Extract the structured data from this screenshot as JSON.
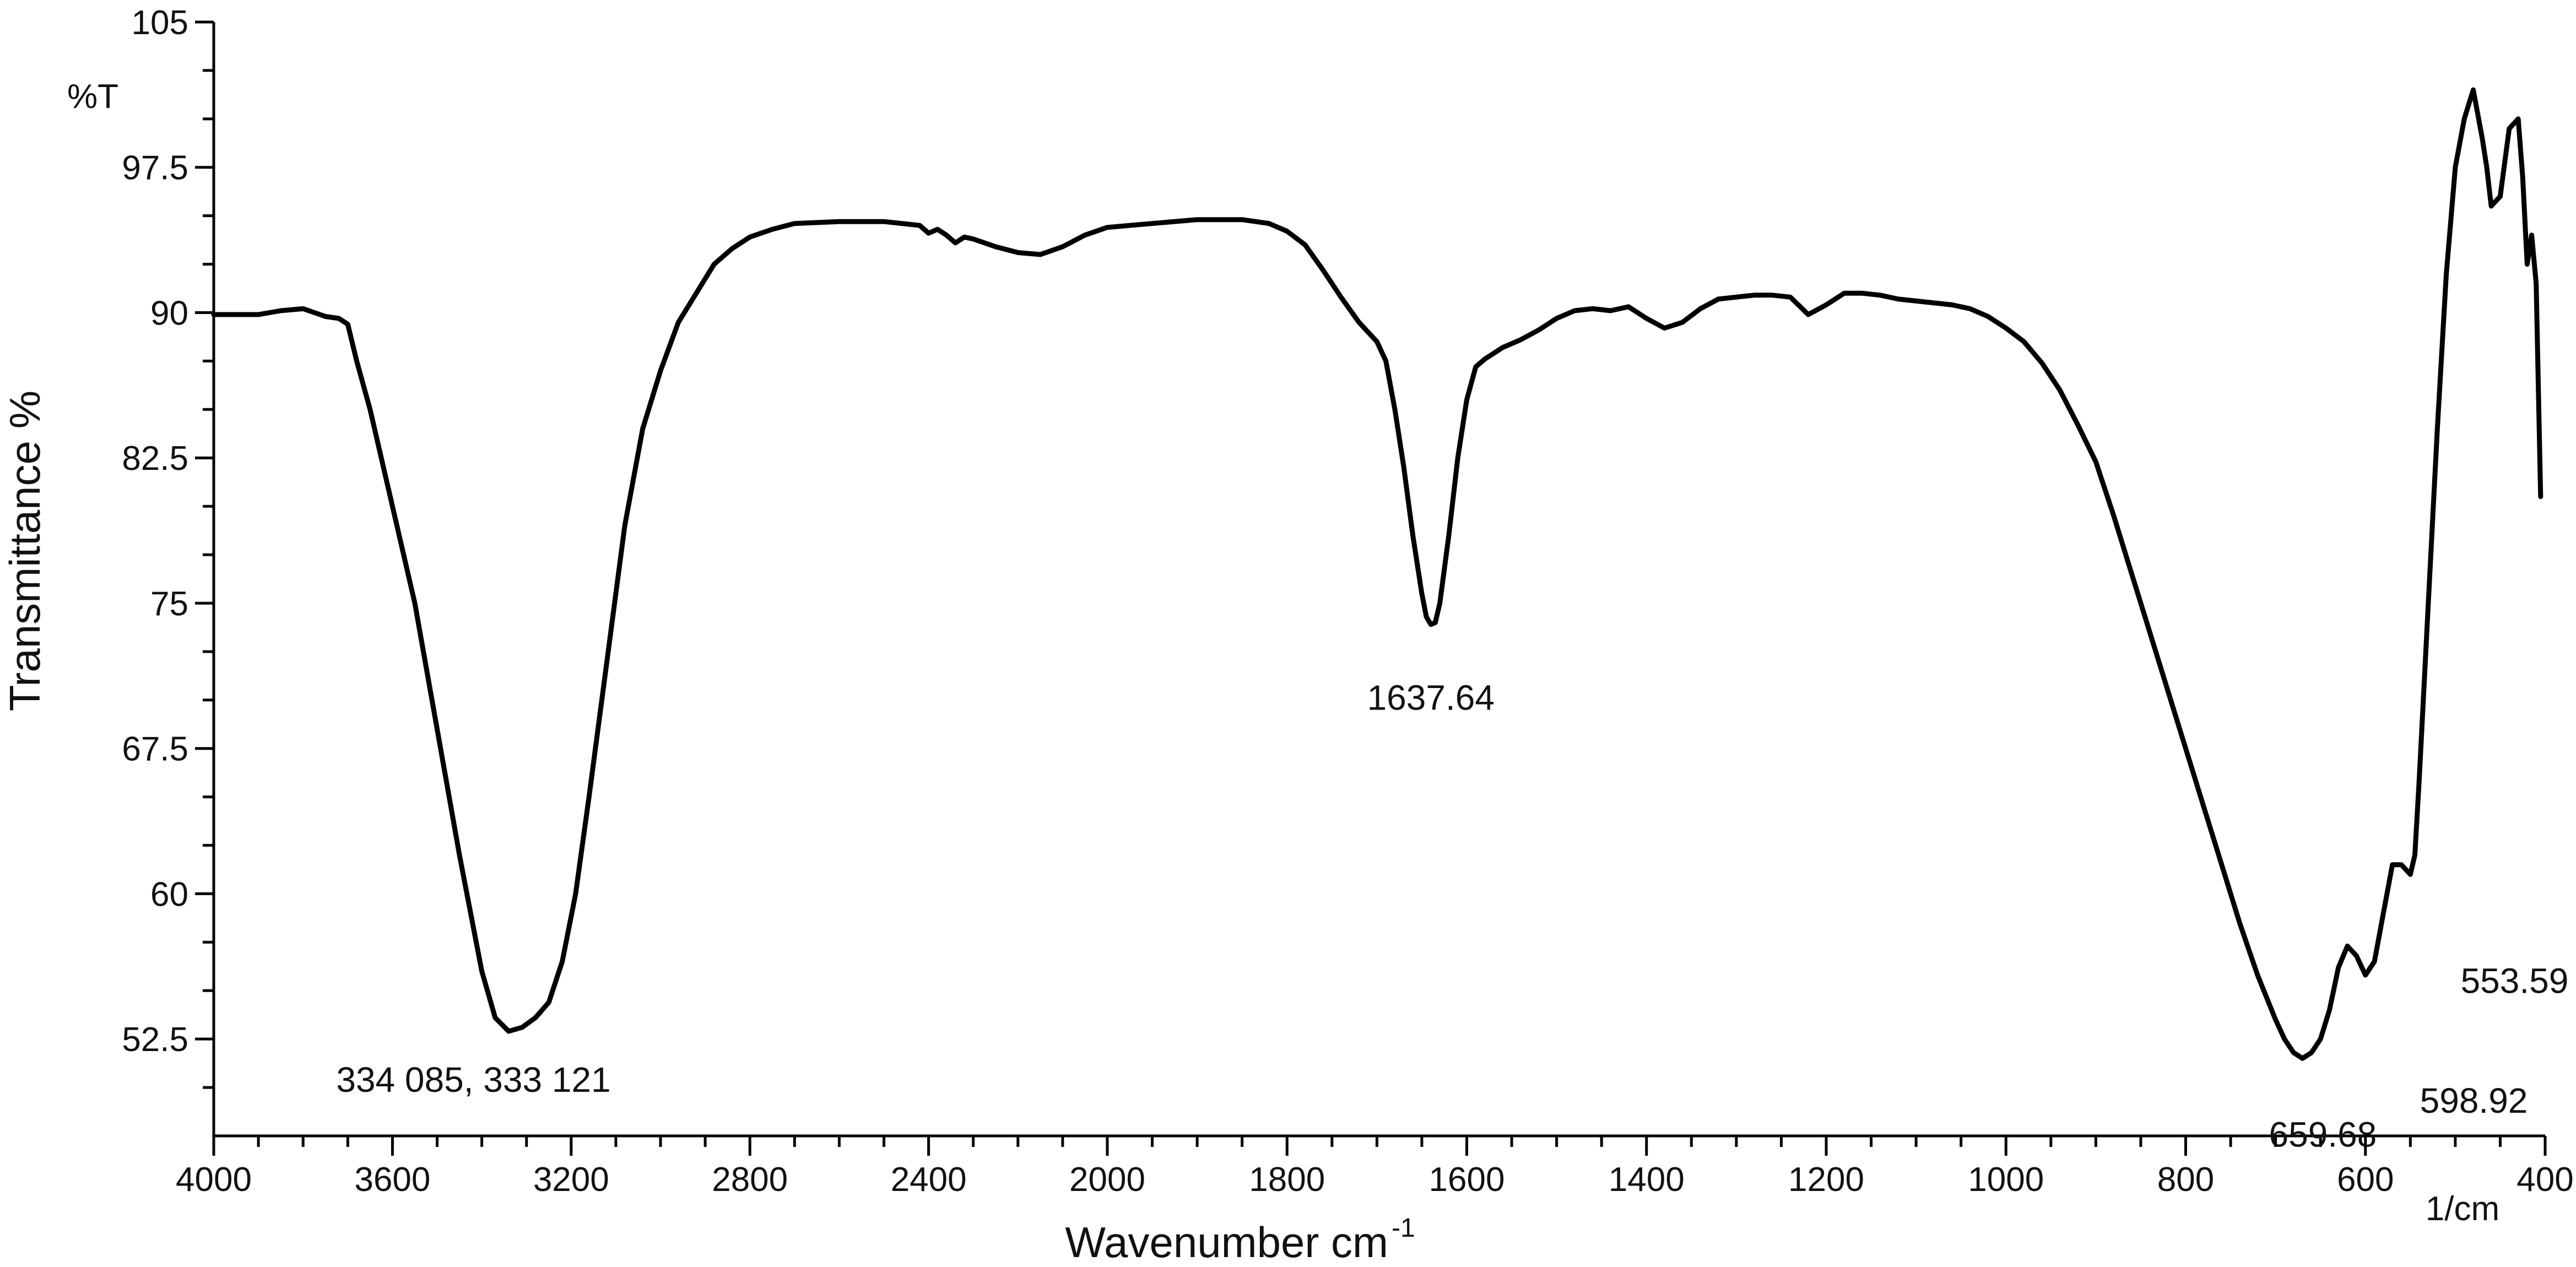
{
  "chart_data": {
    "type": "line",
    "title": "",
    "xlabel": "Wavenumber cm",
    "xlabel_sup": "-1",
    "ylabel": "Transmittance %",
    "y_unit_label": "%T",
    "x_unit_label": "1/cm",
    "xlim": [
      4000,
      400
    ],
    "ylim": [
      47.5,
      105
    ],
    "x_ticks": [
      4000,
      3600,
      3200,
      2800,
      2400,
      2000,
      1800,
      1600,
      1400,
      1200,
      1000,
      800,
      600,
      400
    ],
    "y_ticks": [
      52.5,
      60,
      67.5,
      75,
      82.5,
      90,
      97.5,
      105
    ],
    "y_tick_labels": [
      "52.5",
      "60",
      "67.5",
      "75",
      "82.5",
      "90",
      "97.5",
      "105"
    ],
    "grid": false,
    "series": [
      {
        "color": "#000000",
        "x": [
          4000,
          3900,
          3850,
          3800,
          3750,
          3720,
          3700,
          3680,
          3650,
          3600,
          3550,
          3500,
          3450,
          3400,
          3370,
          3340,
          3310,
          3280,
          3250,
          3220,
          3190,
          3160,
          3120,
          3080,
          3040,
          3000,
          2960,
          2920,
          2880,
          2840,
          2800,
          2750,
          2700,
          2600,
          2500,
          2420,
          2400,
          2380,
          2360,
          2340,
          2320,
          2300,
          2250,
          2200,
          2150,
          2100,
          2050,
          2000,
          1950,
          1900,
          1850,
          1820,
          1800,
          1780,
          1760,
          1740,
          1720,
          1700,
          1690,
          1680,
          1670,
          1660,
          1650,
          1645,
          1640,
          1635,
          1630,
          1620,
          1610,
          1600,
          1590,
          1580,
          1560,
          1540,
          1520,
          1500,
          1480,
          1460,
          1440,
          1420,
          1400,
          1380,
          1360,
          1340,
          1320,
          1300,
          1280,
          1260,
          1240,
          1220,
          1200,
          1180,
          1160,
          1140,
          1120,
          1100,
          1080,
          1060,
          1040,
          1020,
          1000,
          980,
          960,
          940,
          920,
          900,
          880,
          860,
          840,
          820,
          800,
          780,
          760,
          740,
          720,
          700,
          690,
          680,
          670,
          660,
          650,
          640,
          630,
          620,
          610,
          600,
          590,
          580,
          570,
          560,
          550,
          545,
          540,
          530,
          520,
          510,
          500,
          490,
          480,
          470,
          465,
          460,
          450,
          440,
          430,
          425,
          420,
          415,
          410,
          405
        ],
        "y": [
          89.9,
          89.9,
          90.1,
          90.2,
          89.8,
          89.7,
          89.4,
          87.5,
          85.0,
          80.0,
          75.0,
          68.5,
          62.0,
          56.0,
          53.6,
          52.9,
          53.1,
          53.6,
          54.4,
          56.5,
          60.0,
          65.0,
          72.0,
          79.0,
          84.0,
          87.0,
          89.5,
          91.0,
          92.5,
          93.3,
          93.9,
          94.3,
          94.6,
          94.7,
          94.7,
          94.5,
          94.1,
          94.3,
          94.0,
          93.6,
          93.9,
          93.8,
          93.4,
          93.1,
          93.0,
          93.4,
          94.0,
          94.4,
          94.6,
          94.8,
          94.8,
          94.6,
          94.2,
          93.5,
          92.2,
          90.8,
          89.5,
          88.5,
          87.5,
          85.0,
          82.0,
          78.5,
          75.5,
          74.3,
          73.9,
          74.0,
          75.0,
          78.5,
          82.5,
          85.5,
          87.2,
          87.6,
          88.2,
          88.6,
          89.1,
          89.7,
          90.1,
          90.2,
          90.1,
          90.3,
          89.7,
          89.2,
          89.5,
          90.2,
          90.7,
          90.8,
          90.9,
          90.9,
          90.8,
          89.9,
          90.4,
          91.0,
          91.0,
          90.9,
          90.7,
          90.6,
          90.5,
          90.4,
          90.2,
          89.8,
          89.2,
          88.5,
          87.4,
          86.0,
          84.2,
          82.3,
          79.5,
          76.5,
          73.5,
          70.5,
          67.5,
          64.5,
          61.5,
          58.5,
          55.8,
          53.5,
          52.5,
          51.8,
          51.5,
          51.8,
          52.5,
          54.0,
          56.2,
          57.3,
          56.8,
          55.8,
          56.5,
          59.0,
          61.5,
          61.5,
          61.0,
          62.0,
          66.0,
          75.0,
          84.0,
          92.0,
          97.5,
          100.0,
          101.5,
          99.0,
          97.5,
          95.5,
          96.0,
          99.5,
          100.0,
          97.0,
          92.5,
          94.0,
          91.5,
          80.5
        ]
      }
    ],
    "annotations": [
      {
        "text": "334 085, 333 121",
        "x": 3320,
        "y": 52.9
      },
      {
        "text": "1637.64",
        "x": 1640,
        "y": 73.9
      },
      {
        "text": "659.68",
        "x": 659.68,
        "y": 51.5
      },
      {
        "text": "598.92",
        "x": 598.92,
        "y": 55.8
      },
      {
        "text": "553.59",
        "x": 553.59,
        "y": 61.0
      }
    ]
  }
}
